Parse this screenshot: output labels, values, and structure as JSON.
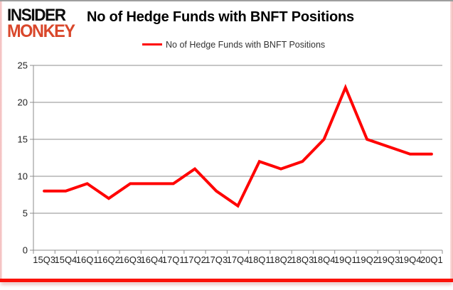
{
  "logo": {
    "line1": "INSIDER",
    "line2": "MONKEY"
  },
  "header": {
    "title": "No of Hedge Funds with BNFT Positions"
  },
  "legend": {
    "label": "No of Hedge Funds with BNFT Positions",
    "line_color": "#ff0000"
  },
  "colors": {
    "series_red": "#ff0000",
    "logo_red": "#d9472b",
    "gridline_gray": "#8c8c8c",
    "axis_text": "#1f1f1f",
    "frame_bottom_red": "#fb1209",
    "frame_side_pink": "#f2b9b9",
    "frame_top_gray": "#9e9e9e"
  },
  "chart_data": {
    "type": "line",
    "title": "No of Hedge Funds with BNFT Positions",
    "categories": [
      "15Q3",
      "15Q4",
      "16Q1",
      "16Q2",
      "16Q3",
      "16Q4",
      "17Q1",
      "17Q2",
      "17Q3",
      "17Q4",
      "18Q1",
      "18Q2",
      "18Q3",
      "18Q4",
      "19Q1",
      "19Q2",
      "19Q3",
      "19Q4",
      "20Q1"
    ],
    "series": [
      {
        "name": "No of Hedge Funds with BNFT Positions",
        "color": "#ff0000",
        "values": [
          8,
          8,
          9,
          7,
          9,
          9,
          9,
          11,
          8,
          6,
          12,
          11,
          12,
          15,
          22,
          15,
          14,
          13,
          13
        ]
      }
    ],
    "xlabel": "",
    "ylabel": "",
    "ylim": [
      0,
      25
    ],
    "yticks": [
      0,
      5,
      10,
      15,
      20,
      25
    ],
    "grid": "horizontal",
    "legend_position": "top-center"
  }
}
